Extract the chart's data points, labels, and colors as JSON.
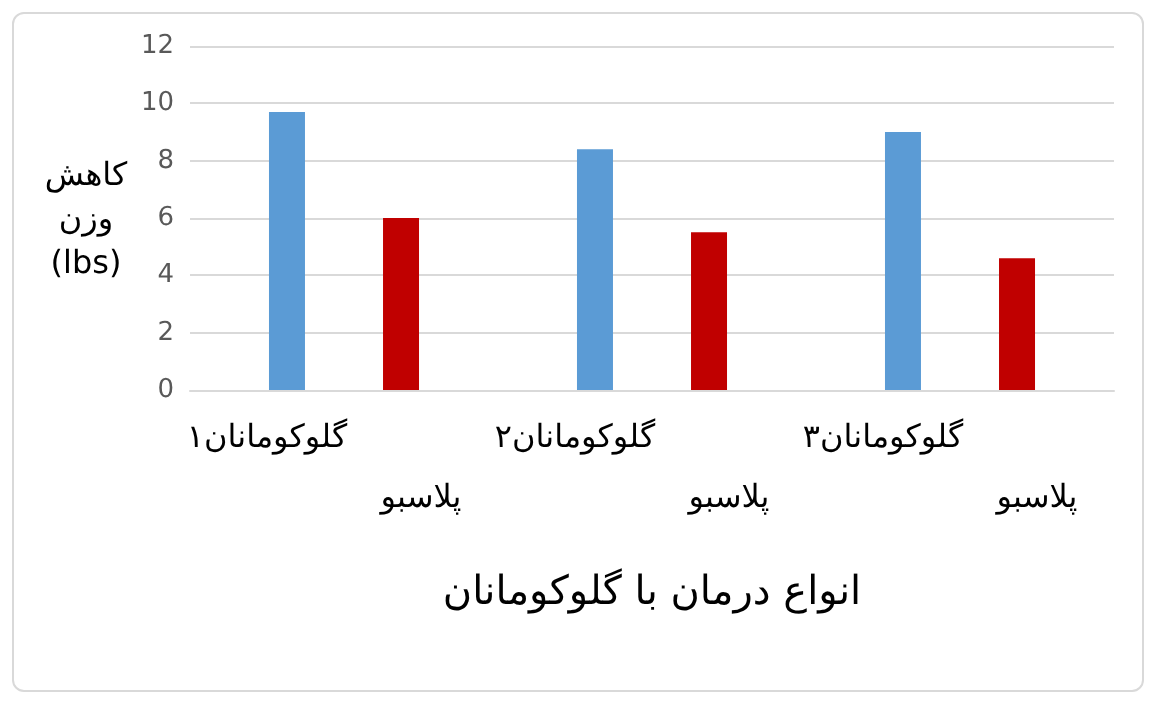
{
  "chart_data": {
    "type": "bar",
    "xlabel": "انواع درمان با گلوکومانان",
    "ylabel": "کاهش وزن (lbs)",
    "categories": [
      "گلوکومانان۱",
      "پلاسبو",
      "گلوکومانان۲",
      "پلاسبو",
      "گلوکومانان۳",
      "پلاسبو"
    ],
    "series": [
      {
        "color": "#c00000",
        "values": [
          null,
          6.0,
          null,
          5.5,
          null,
          4.6
        ]
      },
      {
        "color": "#5b9bd5",
        "values": [
          9.7,
          null,
          8.4,
          null,
          9.0,
          null
        ]
      }
    ],
    "ylim": [
      0,
      12
    ],
    "yticks": [
      0,
      2,
      4,
      6,
      8,
      10,
      12
    ],
    "grid": "y"
  }
}
